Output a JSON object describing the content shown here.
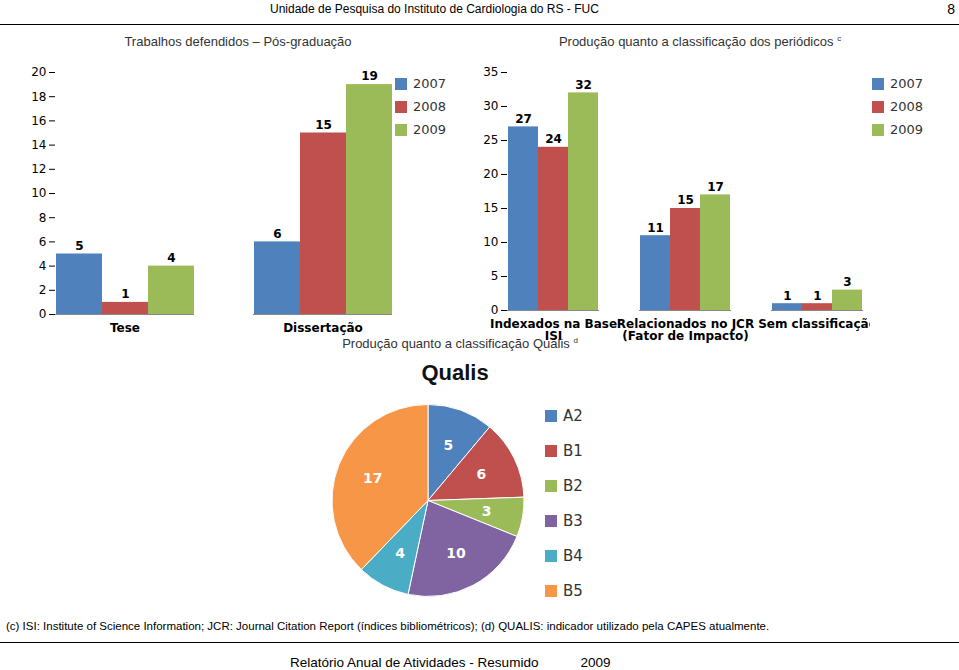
{
  "header": {
    "title": "Unidade de Pesquisa do Instituto de Cardiologia do RS - FUC",
    "page": 8
  },
  "chart_data": [
    {
      "type": "bar",
      "title": "Trabalhos defendidos – Pós-graduação",
      "categories": [
        "Tese",
        "Dissertação"
      ],
      "series": [
        {
          "name": "2007",
          "color": "#4f81bd",
          "values": [
            5,
            6
          ]
        },
        {
          "name": "2008",
          "color": "#c0504d",
          "values": [
            1,
            15
          ]
        },
        {
          "name": "2009",
          "color": "#9bbb59",
          "values": [
            4,
            19
          ]
        }
      ],
      "ylim": [
        0,
        20
      ],
      "yticks": [
        0,
        2,
        4,
        6,
        8,
        10,
        12,
        14,
        16,
        18,
        20
      ],
      "data_labels": true,
      "legend": "right",
      "grid": false
    },
    {
      "type": "bar",
      "title": "Produção quanto a classificação dos periódicos",
      "title_mark": "c",
      "categories": [
        "Indexados na Base ISI",
        "Relacionados no JCR (Fator de Impacto)",
        "Sem classificação"
      ],
      "series": [
        {
          "name": "2007",
          "color": "#4f81bd",
          "values": [
            27,
            11,
            1
          ]
        },
        {
          "name": "2008",
          "color": "#c0504d",
          "values": [
            24,
            15,
            1
          ]
        },
        {
          "name": "2009",
          "color": "#9bbb59",
          "values": [
            32,
            17,
            3
          ]
        }
      ],
      "ylim": [
        0,
        35
      ],
      "yticks": [
        0,
        5,
        10,
        15,
        20,
        25,
        30,
        35
      ],
      "data_labels": true,
      "legend": "right",
      "grid": false
    },
    {
      "type": "pie",
      "title": "Produção quanto a classificação Qualis",
      "title_mark": "d",
      "subtitle": "Qualis",
      "categories": [
        "A2",
        "B1",
        "B2",
        "B3",
        "B4",
        "B5"
      ],
      "values": [
        5,
        6,
        3,
        10,
        4,
        17
      ],
      "colors": [
        "#4f81bd",
        "#c0504d",
        "#9bbb59",
        "#8064a2",
        "#4bacc6",
        "#f79646"
      ],
      "data_labels": true,
      "legend": "right"
    }
  ],
  "footnote": "(c) ISI: Institute of Science Information; JCR: Journal Citation Report (índices bibliométricos); (d) QUALIS: indicador utilizado pela CAPES atualmente.",
  "footer": {
    "text": "Relatório Anual de Atividades - Resumido",
    "year": 2009
  }
}
